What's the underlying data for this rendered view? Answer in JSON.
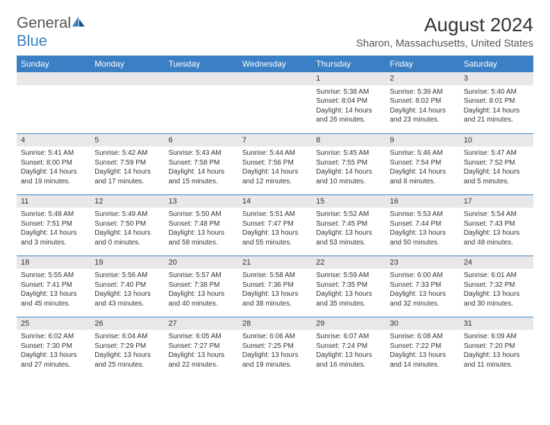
{
  "brand": {
    "name1": "General",
    "name2": "Blue"
  },
  "title": "August 2024",
  "location": "Sharon, Massachusetts, United States",
  "colors": {
    "header_bg": "#3b7fc4",
    "header_text": "#ffffff",
    "daynum_bg": "#e8e8e8",
    "row_border": "#3b7fc4",
    "body_bg": "#ffffff",
    "text": "#333333"
  },
  "weekdays": [
    "Sunday",
    "Monday",
    "Tuesday",
    "Wednesday",
    "Thursday",
    "Friday",
    "Saturday"
  ],
  "weeks": [
    [
      null,
      null,
      null,
      null,
      {
        "n": "1",
        "sr": "Sunrise: 5:38 AM",
        "ss": "Sunset: 8:04 PM",
        "dl": "Daylight: 14 hours and 26 minutes."
      },
      {
        "n": "2",
        "sr": "Sunrise: 5:39 AM",
        "ss": "Sunset: 8:02 PM",
        "dl": "Daylight: 14 hours and 23 minutes."
      },
      {
        "n": "3",
        "sr": "Sunrise: 5:40 AM",
        "ss": "Sunset: 8:01 PM",
        "dl": "Daylight: 14 hours and 21 minutes."
      }
    ],
    [
      {
        "n": "4",
        "sr": "Sunrise: 5:41 AM",
        "ss": "Sunset: 8:00 PM",
        "dl": "Daylight: 14 hours and 19 minutes."
      },
      {
        "n": "5",
        "sr": "Sunrise: 5:42 AM",
        "ss": "Sunset: 7:59 PM",
        "dl": "Daylight: 14 hours and 17 minutes."
      },
      {
        "n": "6",
        "sr": "Sunrise: 5:43 AM",
        "ss": "Sunset: 7:58 PM",
        "dl": "Daylight: 14 hours and 15 minutes."
      },
      {
        "n": "7",
        "sr": "Sunrise: 5:44 AM",
        "ss": "Sunset: 7:56 PM",
        "dl": "Daylight: 14 hours and 12 minutes."
      },
      {
        "n": "8",
        "sr": "Sunrise: 5:45 AM",
        "ss": "Sunset: 7:55 PM",
        "dl": "Daylight: 14 hours and 10 minutes."
      },
      {
        "n": "9",
        "sr": "Sunrise: 5:46 AM",
        "ss": "Sunset: 7:54 PM",
        "dl": "Daylight: 14 hours and 8 minutes."
      },
      {
        "n": "10",
        "sr": "Sunrise: 5:47 AM",
        "ss": "Sunset: 7:52 PM",
        "dl": "Daylight: 14 hours and 5 minutes."
      }
    ],
    [
      {
        "n": "11",
        "sr": "Sunrise: 5:48 AM",
        "ss": "Sunset: 7:51 PM",
        "dl": "Daylight: 14 hours and 3 minutes."
      },
      {
        "n": "12",
        "sr": "Sunrise: 5:49 AM",
        "ss": "Sunset: 7:50 PM",
        "dl": "Daylight: 14 hours and 0 minutes."
      },
      {
        "n": "13",
        "sr": "Sunrise: 5:50 AM",
        "ss": "Sunset: 7:48 PM",
        "dl": "Daylight: 13 hours and 58 minutes."
      },
      {
        "n": "14",
        "sr": "Sunrise: 5:51 AM",
        "ss": "Sunset: 7:47 PM",
        "dl": "Daylight: 13 hours and 55 minutes."
      },
      {
        "n": "15",
        "sr": "Sunrise: 5:52 AM",
        "ss": "Sunset: 7:45 PM",
        "dl": "Daylight: 13 hours and 53 minutes."
      },
      {
        "n": "16",
        "sr": "Sunrise: 5:53 AM",
        "ss": "Sunset: 7:44 PM",
        "dl": "Daylight: 13 hours and 50 minutes."
      },
      {
        "n": "17",
        "sr": "Sunrise: 5:54 AM",
        "ss": "Sunset: 7:43 PM",
        "dl": "Daylight: 13 hours and 48 minutes."
      }
    ],
    [
      {
        "n": "18",
        "sr": "Sunrise: 5:55 AM",
        "ss": "Sunset: 7:41 PM",
        "dl": "Daylight: 13 hours and 45 minutes."
      },
      {
        "n": "19",
        "sr": "Sunrise: 5:56 AM",
        "ss": "Sunset: 7:40 PM",
        "dl": "Daylight: 13 hours and 43 minutes."
      },
      {
        "n": "20",
        "sr": "Sunrise: 5:57 AM",
        "ss": "Sunset: 7:38 PM",
        "dl": "Daylight: 13 hours and 40 minutes."
      },
      {
        "n": "21",
        "sr": "Sunrise: 5:58 AM",
        "ss": "Sunset: 7:36 PM",
        "dl": "Daylight: 13 hours and 38 minutes."
      },
      {
        "n": "22",
        "sr": "Sunrise: 5:59 AM",
        "ss": "Sunset: 7:35 PM",
        "dl": "Daylight: 13 hours and 35 minutes."
      },
      {
        "n": "23",
        "sr": "Sunrise: 6:00 AM",
        "ss": "Sunset: 7:33 PM",
        "dl": "Daylight: 13 hours and 32 minutes."
      },
      {
        "n": "24",
        "sr": "Sunrise: 6:01 AM",
        "ss": "Sunset: 7:32 PM",
        "dl": "Daylight: 13 hours and 30 minutes."
      }
    ],
    [
      {
        "n": "25",
        "sr": "Sunrise: 6:02 AM",
        "ss": "Sunset: 7:30 PM",
        "dl": "Daylight: 13 hours and 27 minutes."
      },
      {
        "n": "26",
        "sr": "Sunrise: 6:04 AM",
        "ss": "Sunset: 7:29 PM",
        "dl": "Daylight: 13 hours and 25 minutes."
      },
      {
        "n": "27",
        "sr": "Sunrise: 6:05 AM",
        "ss": "Sunset: 7:27 PM",
        "dl": "Daylight: 13 hours and 22 minutes."
      },
      {
        "n": "28",
        "sr": "Sunrise: 6:06 AM",
        "ss": "Sunset: 7:25 PM",
        "dl": "Daylight: 13 hours and 19 minutes."
      },
      {
        "n": "29",
        "sr": "Sunrise: 6:07 AM",
        "ss": "Sunset: 7:24 PM",
        "dl": "Daylight: 13 hours and 16 minutes."
      },
      {
        "n": "30",
        "sr": "Sunrise: 6:08 AM",
        "ss": "Sunset: 7:22 PM",
        "dl": "Daylight: 13 hours and 14 minutes."
      },
      {
        "n": "31",
        "sr": "Sunrise: 6:09 AM",
        "ss": "Sunset: 7:20 PM",
        "dl": "Daylight: 13 hours and 11 minutes."
      }
    ]
  ]
}
